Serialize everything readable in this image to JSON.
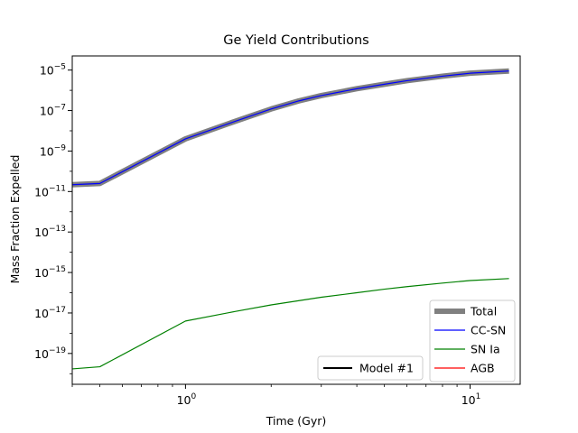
{
  "chart_data": {
    "type": "line",
    "title": "Ge Yield Contributions",
    "xlabel": "Time (Gyr)",
    "ylabel": "Mass Fraction Expelled",
    "xscale": "log",
    "yscale": "log",
    "xlim": [
      0.4,
      15
    ],
    "ylim": [
      3e-21,
      5e-05
    ],
    "x_ticks": [
      {
        "value": 1,
        "label_base": "10",
        "label_exp": "0"
      },
      {
        "value": 10,
        "label_base": "10",
        "label_exp": "1"
      }
    ],
    "y_ticks": [
      {
        "value": 1e-19,
        "label_base": "10",
        "label_exp": "−19"
      },
      {
        "value": 1e-17,
        "label_base": "10",
        "label_exp": "−17"
      },
      {
        "value": 1e-15,
        "label_base": "10",
        "label_exp": "−15"
      },
      {
        "value": 1e-13,
        "label_base": "10",
        "label_exp": "−13"
      },
      {
        "value": 1e-11,
        "label_base": "10",
        "label_exp": "−11"
      },
      {
        "value": 1e-09,
        "label_base": "10",
        "label_exp": "−9"
      },
      {
        "value": 1e-07,
        "label_base": "10",
        "label_exp": "−7"
      },
      {
        "value": 1e-05,
        "label_base": "10",
        "label_exp": "−5"
      }
    ],
    "grid": false,
    "series": [
      {
        "name": "Total",
        "color": "#808080",
        "x": [
          0.35,
          0.5,
          1.0,
          1.5,
          2.0,
          2.5,
          3.0,
          4.0,
          5.0,
          6.0,
          8.0,
          10.0,
          13.7
        ],
        "y": [
          2e-11,
          2.5e-11,
          4e-09,
          3e-08,
          1.2e-07,
          3e-07,
          5.5e-07,
          1.2e-06,
          2e-06,
          3e-06,
          5e-06,
          7e-06,
          9e-06
        ]
      },
      {
        "name": "CC-SN",
        "color": "#0000ff",
        "x": [
          0.35,
          0.5,
          1.0,
          1.5,
          2.0,
          2.5,
          3.0,
          4.0,
          5.0,
          6.0,
          8.0,
          10.0,
          13.7
        ],
        "y": [
          2e-11,
          2.5e-11,
          4e-09,
          3e-08,
          1.2e-07,
          3e-07,
          5.5e-07,
          1.2e-06,
          2e-06,
          3e-06,
          5e-06,
          7e-06,
          9e-06
        ]
      },
      {
        "name": "SN Ia",
        "color": "#008000",
        "x": [
          0.35,
          0.5,
          1.0,
          1.5,
          2.0,
          3.0,
          4.0,
          5.0,
          6.0,
          8.0,
          10.0,
          13.7
        ],
        "y": [
          1.5e-20,
          2.2e-20,
          4e-18,
          1.2e-17,
          2.5e-17,
          6e-17,
          1e-16,
          1.5e-16,
          2e-16,
          3e-16,
          4e-16,
          5e-16
        ]
      },
      {
        "name": "AGB",
        "color": "#ff0000",
        "x": [],
        "y": []
      }
    ],
    "legend": {
      "placement": "lower right",
      "entries": [
        {
          "name": "Total",
          "color": "#808080",
          "thick": true
        },
        {
          "name": "CC-SN",
          "color": "#0000ff",
          "thick": false
        },
        {
          "name": "SN Ia",
          "color": "#008000",
          "thick": false
        },
        {
          "name": "AGB",
          "color": "#ff0000",
          "thick": false
        }
      ]
    },
    "model_legend": {
      "placement": "lower center",
      "entries": [
        {
          "name": "Model #1",
          "color": "#000000"
        }
      ]
    }
  }
}
